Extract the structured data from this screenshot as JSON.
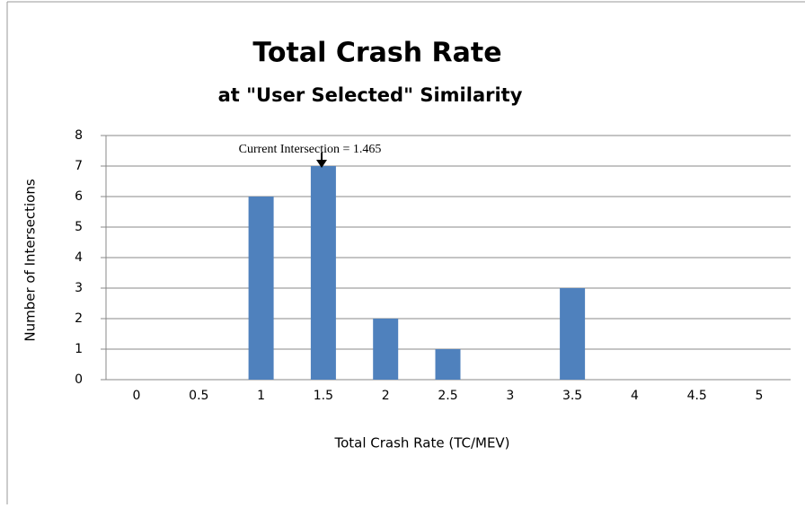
{
  "chart_data": {
    "type": "bar",
    "title": "Total Crash Rate",
    "subtitle": "at \"User Selected\" Similarity",
    "x_label": "Total Crash Rate  (TC/MEV)",
    "y_label": "Number of Intersections",
    "annotation": "Current Intersection = 1.465",
    "categories": [
      "0",
      "0.5",
      "1",
      "1.5",
      "2",
      "2.5",
      "3",
      "3.5",
      "4",
      "4.5",
      "5"
    ],
    "values": [
      0,
      0,
      6,
      7,
      2,
      1,
      0,
      3,
      0,
      0,
      0
    ],
    "color": "#4f81bd",
    "ylim": [
      0,
      8
    ],
    "yticks": [
      0,
      1,
      2,
      3,
      4,
      5,
      6,
      7,
      8
    ],
    "grid": true
  }
}
